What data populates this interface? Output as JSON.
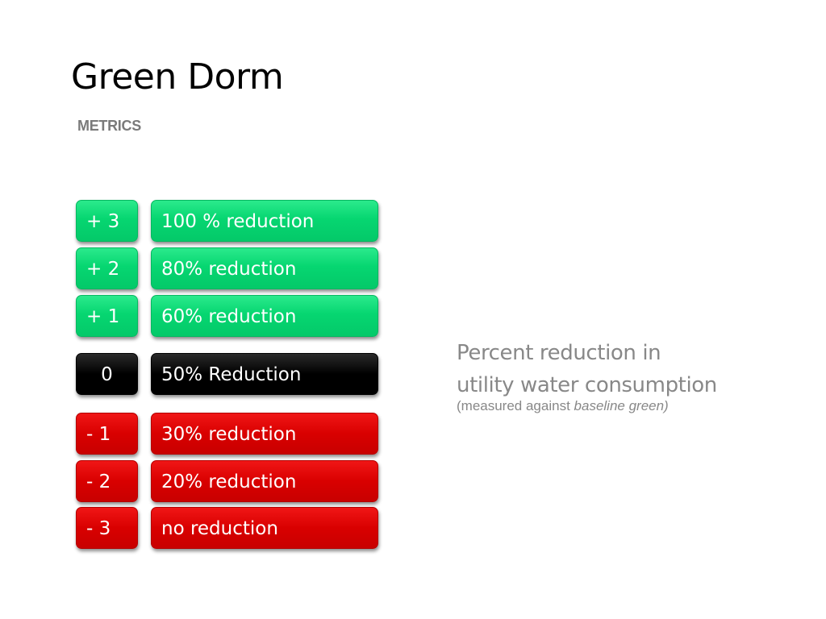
{
  "slide": {
    "title": "Green Dorm",
    "subtitle": "METRICS"
  },
  "metrics": [
    {
      "score": "+ 3",
      "label": "100 % reduction",
      "color": "#06d671"
    },
    {
      "score": "+ 2",
      "label": "80% reduction",
      "color": "#06d671"
    },
    {
      "score": "+ 1",
      "label": "60% reduction",
      "color": "#06d671"
    },
    {
      "score": "0",
      "label": "50% Reduction",
      "color": "#000000"
    },
    {
      "score": "-  1",
      "label": "30% reduction",
      "color": "#d90000"
    },
    {
      "score": "-  2",
      "label": "20% reduction",
      "color": "#d90000"
    },
    {
      "score": "-  3",
      "label": "no reduction",
      "color": "#d90000"
    }
  ],
  "description": {
    "line1": "Percent reduction in",
    "line2": "utility water consumption",
    "note_prefix": "(measured against ",
    "note_emphasis": "baseline green)"
  }
}
